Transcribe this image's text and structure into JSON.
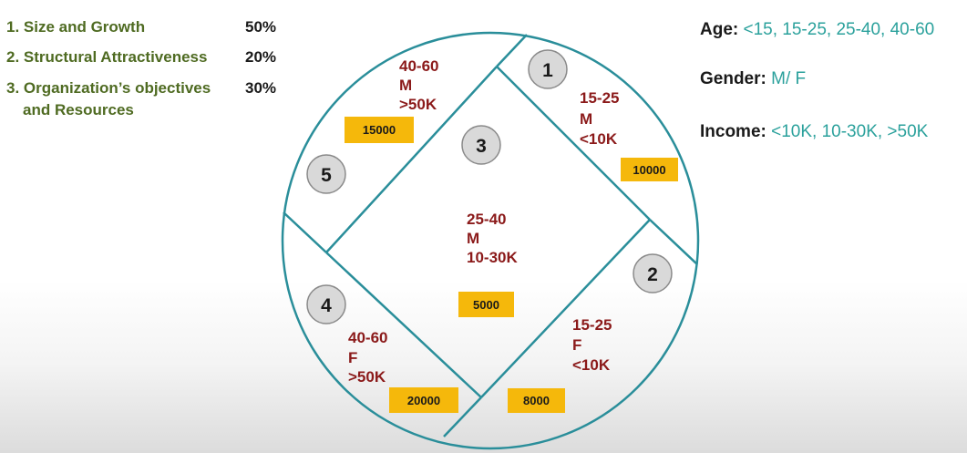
{
  "criteria": [
    {
      "label": "1. Size and Growth",
      "weight": "50%"
    },
    {
      "label": "2. Structural Attractiveness",
      "weight": "20%"
    },
    {
      "label_line1": "3. Organization’s objectives",
      "label_line2": "and Resources",
      "weight": "30%"
    }
  ],
  "legend": {
    "age_key": "Age:",
    "age_value": "<15, 15-25, 25-40, 40-60",
    "gender_key": "Gender:",
    "gender_value": "M/ F",
    "income_key": "Income:",
    "income_value": "<10K, 10-30K, >50K"
  },
  "segments": [
    {
      "number": "1",
      "age": "15-25",
      "gender": "M",
      "income": "<10K",
      "value": "10000"
    },
    {
      "number": "2",
      "age": "15-25",
      "gender": "F",
      "income": "<10K",
      "value": "8000"
    },
    {
      "number": "3",
      "age": "25-40",
      "gender": "M",
      "income": "10-30K",
      "value": "5000"
    },
    {
      "number": "4",
      "age": "40-60",
      "gender": "F",
      "income": ">50K",
      "value": "20000"
    },
    {
      "number": "5",
      "age": "40-60",
      "gender": "M",
      "income": ">50K",
      "value": "15000"
    }
  ],
  "colors": {
    "circle_stroke": "#2a8e9a",
    "value_box_fill": "#f5b80b",
    "number_badge_fill": "#d9d9d9",
    "segment_text": "#8b1a1a",
    "criteria_text": "#4f6b22",
    "legend_value_text": "#2ba19c"
  }
}
